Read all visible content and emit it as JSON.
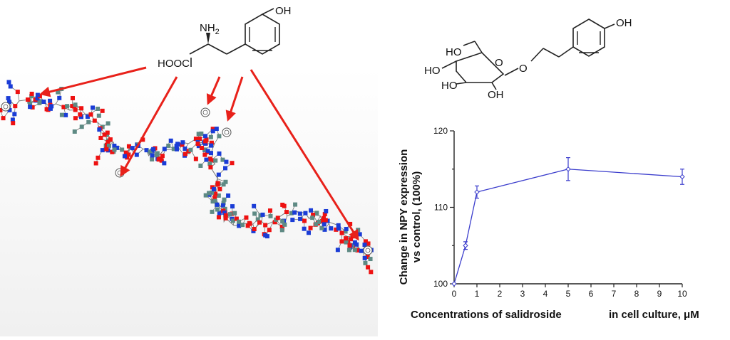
{
  "tyrosine": {
    "amine_label": "NH",
    "amine_subscript": "2",
    "acid_label": "HOOC",
    "hydroxyl_label": "OH"
  },
  "salidroside": {
    "hydroxyl_top": "OH",
    "ring_hydroxyls": [
      "HO",
      "HO",
      "HO",
      "OH"
    ],
    "ring_oxygen": "O",
    "ether_oxygen": "O"
  },
  "colors": {
    "arrow": "#e8211a",
    "series_line": "#3a3ccc",
    "oxygen_node": "#ee1111",
    "nitrogen_node": "#1a3cd6",
    "generic_node": "#5e8a84",
    "bond": "#777777"
  },
  "chart_data": {
    "type": "line",
    "ylabel_line1": "Change in NPY expression",
    "ylabel_line2": "vs control, (100%)",
    "xlabel_part1": "Concentrations of salidroside",
    "xlabel_part2": "in cell culture, μM",
    "x_ticks": [
      0,
      1,
      2,
      3,
      4,
      5,
      6,
      7,
      8,
      9,
      10
    ],
    "y_ticks": [
      100,
      110,
      120
    ],
    "xlim": [
      0,
      10
    ],
    "ylim": [
      100,
      120
    ],
    "series": [
      {
        "x": [
          0,
          0.5,
          1,
          5,
          10
        ],
        "y": [
          100,
          105,
          112,
          115,
          114
        ],
        "err": [
          0,
          0.5,
          0.8,
          1.5,
          1
        ]
      }
    ]
  }
}
